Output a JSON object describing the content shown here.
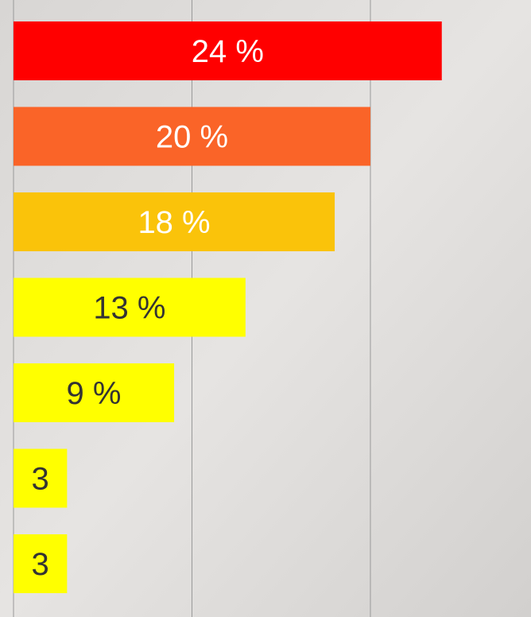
{
  "chart_data": {
    "type": "bar",
    "orientation": "horizontal",
    "values": [
      24,
      20,
      18,
      13,
      9,
      3,
      3
    ],
    "value_labels": [
      "24 %",
      "20 %",
      "18 %",
      "13 %",
      "9 %",
      "3",
      "3"
    ],
    "colors": [
      "#ff0000",
      "#fa6428",
      "#fac30a",
      "#ffff00",
      "#ffff00",
      "#ffff00",
      "#ffff00"
    ],
    "label_colors": [
      "#ffffff",
      "#ffffff",
      "#ffffff",
      "#333333",
      "#333333",
      "#333333",
      "#333333"
    ],
    "xlim": [
      0,
      29
    ],
    "xticks": [
      0,
      10,
      20
    ],
    "grid": true
  }
}
